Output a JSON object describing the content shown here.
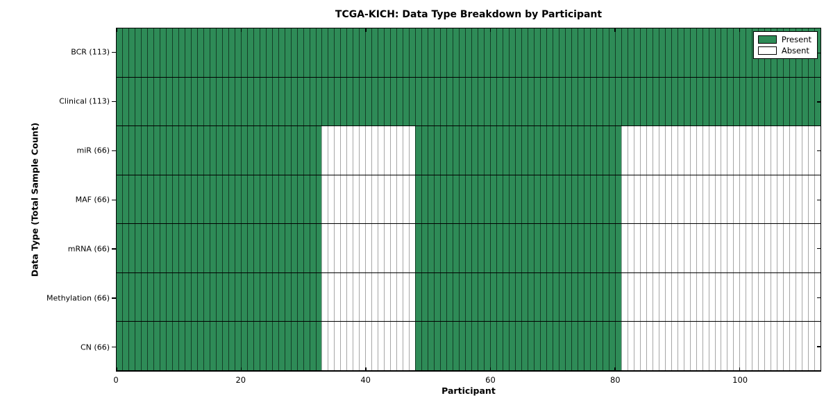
{
  "chart_data": {
    "type": "heatmap",
    "title": "TCGA-KICH: Data Type Breakdown by Participant",
    "xlabel": "Participant",
    "ylabel": "Data Type (Total Sample Count)",
    "n_participants": 113,
    "x_ticks": [
      0,
      20,
      40,
      60,
      80,
      100
    ],
    "xlim": [
      0,
      113
    ],
    "grid": false,
    "legend_position": "upper right",
    "legend": [
      {
        "label": "Present",
        "color": "#2e8b57"
      },
      {
        "label": "Absent",
        "color": "#ffffff"
      }
    ],
    "colors": {
      "present": "#2e8b57",
      "absent": "#ffffff",
      "edge": "#000000"
    },
    "rows": [
      {
        "label": "BCR (113)",
        "total": 113,
        "present_segments": [
          [
            0,
            113
          ]
        ]
      },
      {
        "label": "Clinical (113)",
        "total": 113,
        "present_segments": [
          [
            0,
            113
          ]
        ]
      },
      {
        "label": "miR (66)",
        "total": 66,
        "present_segments": [
          [
            0,
            33
          ],
          [
            48,
            81
          ]
        ]
      },
      {
        "label": "MAF (66)",
        "total": 66,
        "present_segments": [
          [
            0,
            33
          ],
          [
            48,
            81
          ]
        ]
      },
      {
        "label": "mRNA (66)",
        "total": 66,
        "present_segments": [
          [
            0,
            33
          ],
          [
            48,
            81
          ]
        ]
      },
      {
        "label": "Methylation (66)",
        "total": 66,
        "present_segments": [
          [
            0,
            33
          ],
          [
            48,
            81
          ]
        ]
      },
      {
        "label": "CN (66)",
        "total": 66,
        "present_segments": [
          [
            0,
            33
          ],
          [
            48,
            81
          ]
        ]
      }
    ]
  }
}
